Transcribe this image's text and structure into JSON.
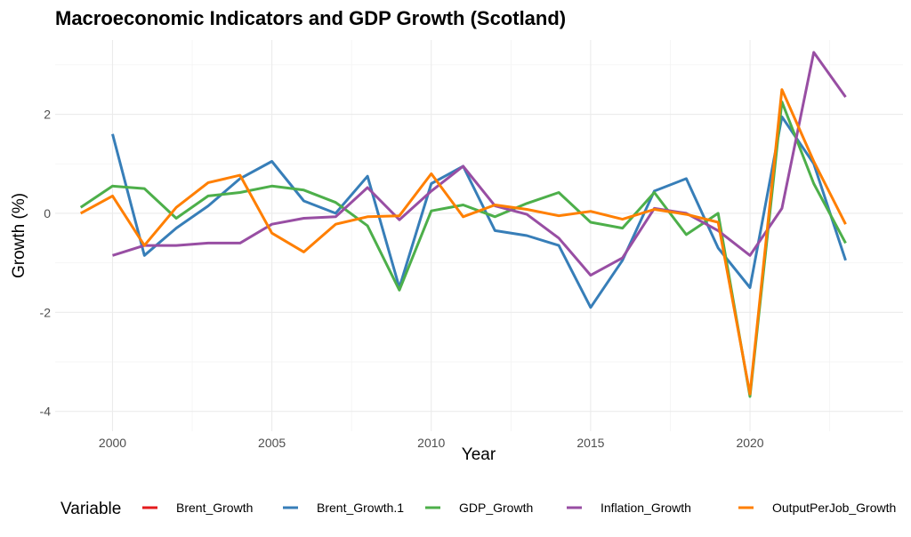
{
  "chart_data": {
    "type": "line",
    "title": "Macroeconomic Indicators and GDP Growth (Scotland)",
    "xlabel": "Year",
    "ylabel": "Growth (%)",
    "xlim": [
      1998.2,
      2024.8
    ],
    "ylim": [
      -4.4,
      3.5
    ],
    "x_ticks": [
      2000,
      2005,
      2010,
      2015,
      2020
    ],
    "x_tick_labels": [
      "2000",
      "2005",
      "2010",
      "2015",
      "2020"
    ],
    "y_ticks": [
      -4,
      -2,
      0,
      2
    ],
    "y_tick_labels": [
      "-4",
      "-2",
      "0",
      "2"
    ],
    "grid": true,
    "legend": {
      "title": "Variable",
      "position": "bottom",
      "entries": [
        "Brent_Growth",
        "Brent_Growth.1",
        "GDP_Growth",
        "Inflation_Growth",
        "OutputPerJob_Growth"
      ]
    },
    "series": [
      {
        "name": "Brent_Growth",
        "color": "#e41a1c",
        "x": [],
        "values": []
      },
      {
        "name": "Brent_Growth.1",
        "color": "#377eb8",
        "x": [
          2000,
          2001,
          2002,
          2003,
          2004,
          2005,
          2006,
          2007,
          2008,
          2009,
          2010,
          2011,
          2012,
          2013,
          2014,
          2015,
          2016,
          2017,
          2018,
          2019,
          2020,
          2021,
          2022,
          2023
        ],
        "values": [
          1.6,
          -0.85,
          -0.3,
          0.15,
          0.7,
          1.05,
          0.25,
          0.0,
          0.75,
          -1.5,
          0.6,
          0.95,
          -0.35,
          -0.45,
          -0.65,
          -1.9,
          -0.95,
          0.45,
          0.7,
          -0.7,
          -1.5,
          1.95,
          1.0,
          -0.95
        ]
      },
      {
        "name": "GDP_Growth",
        "color": "#4daf4a",
        "x": [
          1999,
          2000,
          2001,
          2002,
          2003,
          2004,
          2005,
          2006,
          2007,
          2008,
          2009,
          2010,
          2011,
          2012,
          2013,
          2014,
          2015,
          2016,
          2017,
          2018,
          2019,
          2020,
          2021,
          2022,
          2023
        ],
        "values": [
          0.12,
          0.55,
          0.5,
          -0.1,
          0.35,
          0.42,
          0.55,
          0.47,
          0.22,
          -0.25,
          -1.55,
          0.05,
          0.17,
          -0.07,
          0.2,
          0.42,
          -0.18,
          -0.3,
          0.42,
          -0.43,
          0.0,
          -3.7,
          2.25,
          0.6,
          -0.6
        ]
      },
      {
        "name": "Inflation_Growth",
        "color": "#984ea3",
        "x": [
          2000,
          2001,
          2002,
          2003,
          2004,
          2005,
          2006,
          2007,
          2008,
          2009,
          2010,
          2011,
          2012,
          2013,
          2014,
          2015,
          2016,
          2017,
          2018,
          2019,
          2020,
          2021,
          2022,
          2023
        ],
        "values": [
          -0.85,
          -0.65,
          -0.65,
          -0.6,
          -0.6,
          -0.22,
          -0.1,
          -0.07,
          0.52,
          -0.13,
          0.45,
          0.95,
          0.15,
          -0.02,
          -0.5,
          -1.25,
          -0.9,
          0.1,
          0.0,
          -0.35,
          -0.85,
          0.1,
          3.25,
          2.35
        ]
      },
      {
        "name": "OutputPerJob_Growth",
        "color": "#ff7f00",
        "x": [
          1999,
          2000,
          2001,
          2002,
          2003,
          2004,
          2005,
          2006,
          2007,
          2008,
          2009,
          2010,
          2011,
          2012,
          2013,
          2014,
          2015,
          2016,
          2017,
          2018,
          2019,
          2020,
          2021,
          2022,
          2023
        ],
        "values": [
          0.0,
          0.35,
          -0.65,
          0.12,
          0.62,
          0.77,
          -0.4,
          -0.78,
          -0.22,
          -0.07,
          -0.05,
          0.8,
          -0.07,
          0.17,
          0.08,
          -0.05,
          0.04,
          -0.12,
          0.08,
          -0.02,
          -0.18,
          -3.65,
          2.5,
          1.05,
          -0.22
        ]
      }
    ]
  }
}
